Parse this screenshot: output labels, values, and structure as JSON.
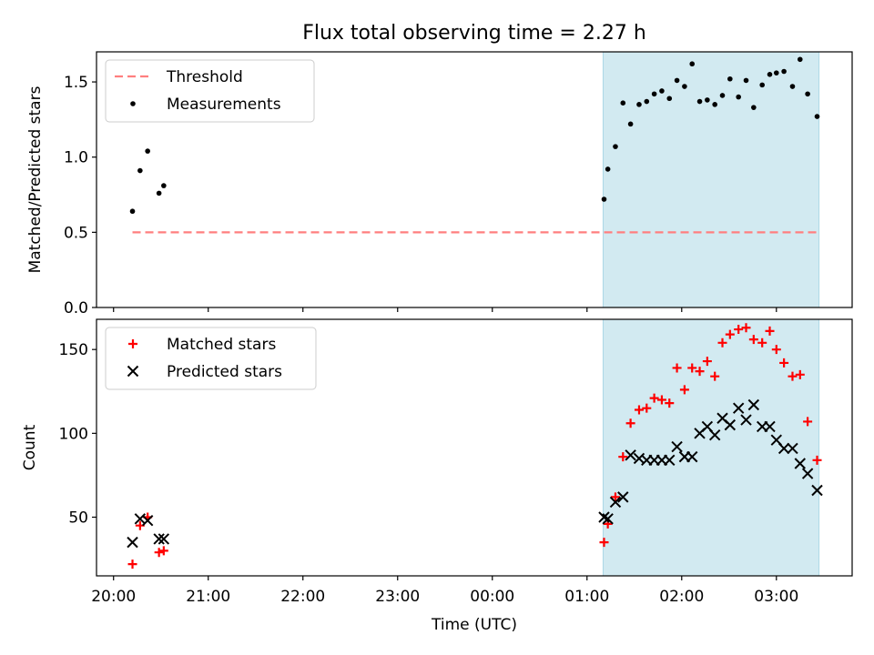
{
  "chart_data": {
    "title": "Flux total observing time = 2.27 h",
    "xlabel": "Time (UTC)",
    "x_unit": "hours UTC (times after midnight written with +24 h continuation)",
    "xlim": [
      19.82,
      27.8
    ],
    "x_ticks": [
      {
        "value": 20,
        "label": "20:00"
      },
      {
        "value": 21,
        "label": "21:00"
      },
      {
        "value": 22,
        "label": "22:00"
      },
      {
        "value": 23,
        "label": "23:00"
      },
      {
        "value": 24,
        "label": "00:00"
      },
      {
        "value": 25,
        "label": "01:00"
      },
      {
        "value": 26,
        "label": "02:00"
      },
      {
        "value": 27,
        "label": "03:00"
      }
    ],
    "shaded_span": [
      25.17,
      27.45
    ],
    "shade_color": "#add8e6",
    "panels": [
      {
        "type": "scatter",
        "ylabel": "Matched/Predicted stars",
        "ylim": [
          0,
          1.7
        ],
        "y_ticks": [
          {
            "value": 0,
            "label": "0.0"
          },
          {
            "value": 0.5,
            "label": "0.5"
          },
          {
            "value": 1.0,
            "label": "1.0"
          },
          {
            "value": 1.5,
            "label": "1.5"
          }
        ],
        "legend": {
          "position": "top-left",
          "entries": [
            "Threshold",
            "Measurements"
          ]
        },
        "threshold": {
          "name": "Threshold",
          "y": 0.5,
          "x_range": [
            20.2,
            27.45
          ],
          "color": "#ff7f7f"
        },
        "series": [
          {
            "name": "Measurements",
            "marker": "dot",
            "color": "#000000",
            "points": [
              [
                20.2,
                0.64
              ],
              [
                20.28,
                0.91
              ],
              [
                20.36,
                1.04
              ],
              [
                20.48,
                0.76
              ],
              [
                20.53,
                0.81
              ],
              [
                25.18,
                0.72
              ],
              [
                25.22,
                0.92
              ],
              [
                25.3,
                1.07
              ],
              [
                25.38,
                1.36
              ],
              [
                25.46,
                1.22
              ],
              [
                25.55,
                1.35
              ],
              [
                25.63,
                1.37
              ],
              [
                25.71,
                1.42
              ],
              [
                25.79,
                1.44
              ],
              [
                25.87,
                1.39
              ],
              [
                25.95,
                1.51
              ],
              [
                26.03,
                1.47
              ],
              [
                26.11,
                1.62
              ],
              [
                26.19,
                1.37
              ],
              [
                26.27,
                1.38
              ],
              [
                26.35,
                1.35
              ],
              [
                26.43,
                1.41
              ],
              [
                26.51,
                1.52
              ],
              [
                26.6,
                1.4
              ],
              [
                26.68,
                1.51
              ],
              [
                26.76,
                1.33
              ],
              [
                26.85,
                1.48
              ],
              [
                26.93,
                1.55
              ],
              [
                27.0,
                1.56
              ],
              [
                27.08,
                1.57
              ],
              [
                27.17,
                1.47
              ],
              [
                27.25,
                1.65
              ],
              [
                27.33,
                1.42
              ],
              [
                27.43,
                1.27
              ]
            ]
          }
        ]
      },
      {
        "type": "scatter",
        "ylabel": "Count",
        "ylim": [
          15,
          168
        ],
        "y_ticks": [
          {
            "value": 50,
            "label": "50"
          },
          {
            "value": 100,
            "label": "100"
          },
          {
            "value": 150,
            "label": "150"
          }
        ],
        "legend": {
          "position": "top-left",
          "entries": [
            "Matched stars",
            "Predicted stars"
          ]
        },
        "series": [
          {
            "name": "Matched stars",
            "marker": "plus",
            "color": "#ff0000",
            "points": [
              [
                20.2,
                22
              ],
              [
                20.28,
                45
              ],
              [
                20.36,
                50
              ],
              [
                20.48,
                29
              ],
              [
                20.53,
                30
              ],
              [
                25.18,
                35
              ],
              [
                25.22,
                46
              ],
              [
                25.3,
                62
              ],
              [
                25.38,
                86
              ],
              [
                25.46,
                106
              ],
              [
                25.55,
                114
              ],
              [
                25.63,
                115
              ],
              [
                25.71,
                121
              ],
              [
                25.79,
                120
              ],
              [
                25.87,
                118
              ],
              [
                25.95,
                139
              ],
              [
                26.03,
                126
              ],
              [
                26.11,
                139
              ],
              [
                26.19,
                137
              ],
              [
                26.27,
                143
              ],
              [
                26.35,
                134
              ],
              [
                26.43,
                154
              ],
              [
                26.51,
                159
              ],
              [
                26.6,
                162
              ],
              [
                26.68,
                163
              ],
              [
                26.76,
                156
              ],
              [
                26.85,
                154
              ],
              [
                26.93,
                161
              ],
              [
                27.0,
                150
              ],
              [
                27.08,
                142
              ],
              [
                27.17,
                134
              ],
              [
                27.25,
                135
              ],
              [
                27.33,
                107
              ],
              [
                27.43,
                84
              ]
            ]
          },
          {
            "name": "Predicted stars",
            "marker": "cross",
            "color": "#000000",
            "points": [
              [
                20.2,
                35
              ],
              [
                20.28,
                49
              ],
              [
                20.36,
                48
              ],
              [
                20.48,
                37
              ],
              [
                20.53,
                37
              ],
              [
                25.18,
                50
              ],
              [
                25.22,
                49
              ],
              [
                25.3,
                59
              ],
              [
                25.38,
                62
              ],
              [
                25.46,
                87
              ],
              [
                25.55,
                85
              ],
              [
                25.63,
                84
              ],
              [
                25.71,
                84
              ],
              [
                25.79,
                84
              ],
              [
                25.87,
                84
              ],
              [
                25.95,
                92
              ],
              [
                26.03,
                86
              ],
              [
                26.11,
                86
              ],
              [
                26.19,
                100
              ],
              [
                26.27,
                104
              ],
              [
                26.35,
                99
              ],
              [
                26.43,
                109
              ],
              [
                26.51,
                105
              ],
              [
                26.6,
                115
              ],
              [
                26.68,
                108
              ],
              [
                26.76,
                117
              ],
              [
                26.85,
                104
              ],
              [
                26.93,
                104
              ],
              [
                27.0,
                96
              ],
              [
                27.08,
                91
              ],
              [
                27.17,
                91
              ],
              [
                27.25,
                82
              ],
              [
                27.33,
                76
              ],
              [
                27.43,
                66
              ]
            ]
          }
        ]
      }
    ]
  }
}
